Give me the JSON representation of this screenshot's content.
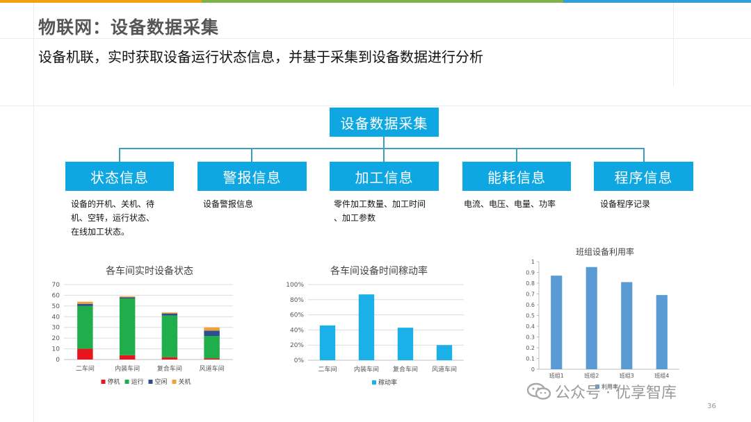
{
  "colors": {
    "accent_blue": "#0fa7e2",
    "connector": "#3aa0c0",
    "topbar": [
      "#f0a010",
      "#7fb24a",
      "#30a0d8"
    ],
    "stop": "#e8141e",
    "run": "#1fae4b",
    "idle": "#2e4f8f",
    "off": "#f0a23a",
    "rate_bar": "#1cb0e8",
    "util_bar": "#5b9bd5"
  },
  "header": {
    "title": "物联网：设备数据采集",
    "subtitle": "设备机联，实时获取设备运行状态信息，并基于采集到设备数据进行分析"
  },
  "diagram": {
    "root": "设备数据采集",
    "children": [
      {
        "label": "状态信息",
        "desc": [
          "设备的开机、关机、待",
          "机、空转，运行状态、",
          "在线加工状态。"
        ]
      },
      {
        "label": "警报信息",
        "desc": [
          "设备警报信息"
        ]
      },
      {
        "label": "加工信息",
        "desc": [
          "零件加工数量、加工时间",
          "、加工参数"
        ]
      },
      {
        "label": "能耗信息",
        "desc": [
          "电流、电压、电量、功率"
        ]
      },
      {
        "label": "程序信息",
        "desc": [
          "设备程序记录"
        ]
      }
    ]
  },
  "chart_data": [
    {
      "type": "bar",
      "stacked": true,
      "title": "各车间实时设备状态",
      "categories": [
        "二车间",
        "内装车间",
        "复合车间",
        "风道车间"
      ],
      "series": [
        {
          "name": "停机",
          "values": [
            10,
            4,
            2,
            1
          ]
        },
        {
          "name": "运行",
          "values": [
            40,
            53,
            39,
            21
          ]
        },
        {
          "name": "空闲",
          "values": [
            2,
            1,
            2,
            5
          ]
        },
        {
          "name": "关机",
          "values": [
            2,
            1,
            1,
            3
          ]
        }
      ],
      "yticks": [
        "70",
        "60",
        "50",
        "40",
        "30",
        "20",
        "10",
        "0"
      ],
      "ylim": [
        0,
        70
      ],
      "legend": "bottom",
      "grid": true
    },
    {
      "type": "bar",
      "title": "各车间设备时间稼动率",
      "categories": [
        "二车间",
        "内装车间",
        "复合车间",
        "风道车间"
      ],
      "series": [
        {
          "name": "稼动率",
          "values": [
            0.46,
            0.87,
            0.43,
            0.2
          ]
        }
      ],
      "yticks": [
        "100%",
        "80%",
        "60%",
        "40%",
        "20%",
        "0%"
      ],
      "ylim": [
        0,
        1
      ],
      "legend": "bottom",
      "grid": true
    },
    {
      "type": "bar",
      "title": "班组设备利用率",
      "categories": [
        "班组1",
        "班组2",
        "班组3",
        "班组4"
      ],
      "series": [
        {
          "name": "利用率",
          "values": [
            0.87,
            0.95,
            0.81,
            0.69
          ]
        }
      ],
      "yticks": [
        "1",
        "0.9",
        "0.8",
        "0.7",
        "0.6",
        "0.5",
        "0.4",
        "0.3",
        "0.2",
        "0.1",
        "0"
      ],
      "ylim": [
        0,
        1
      ],
      "legend": "bottom",
      "grid": false
    }
  ],
  "watermark": {
    "text": "公众号 · 优享智库",
    "icon": "wechat-icon"
  },
  "page_number": "36"
}
